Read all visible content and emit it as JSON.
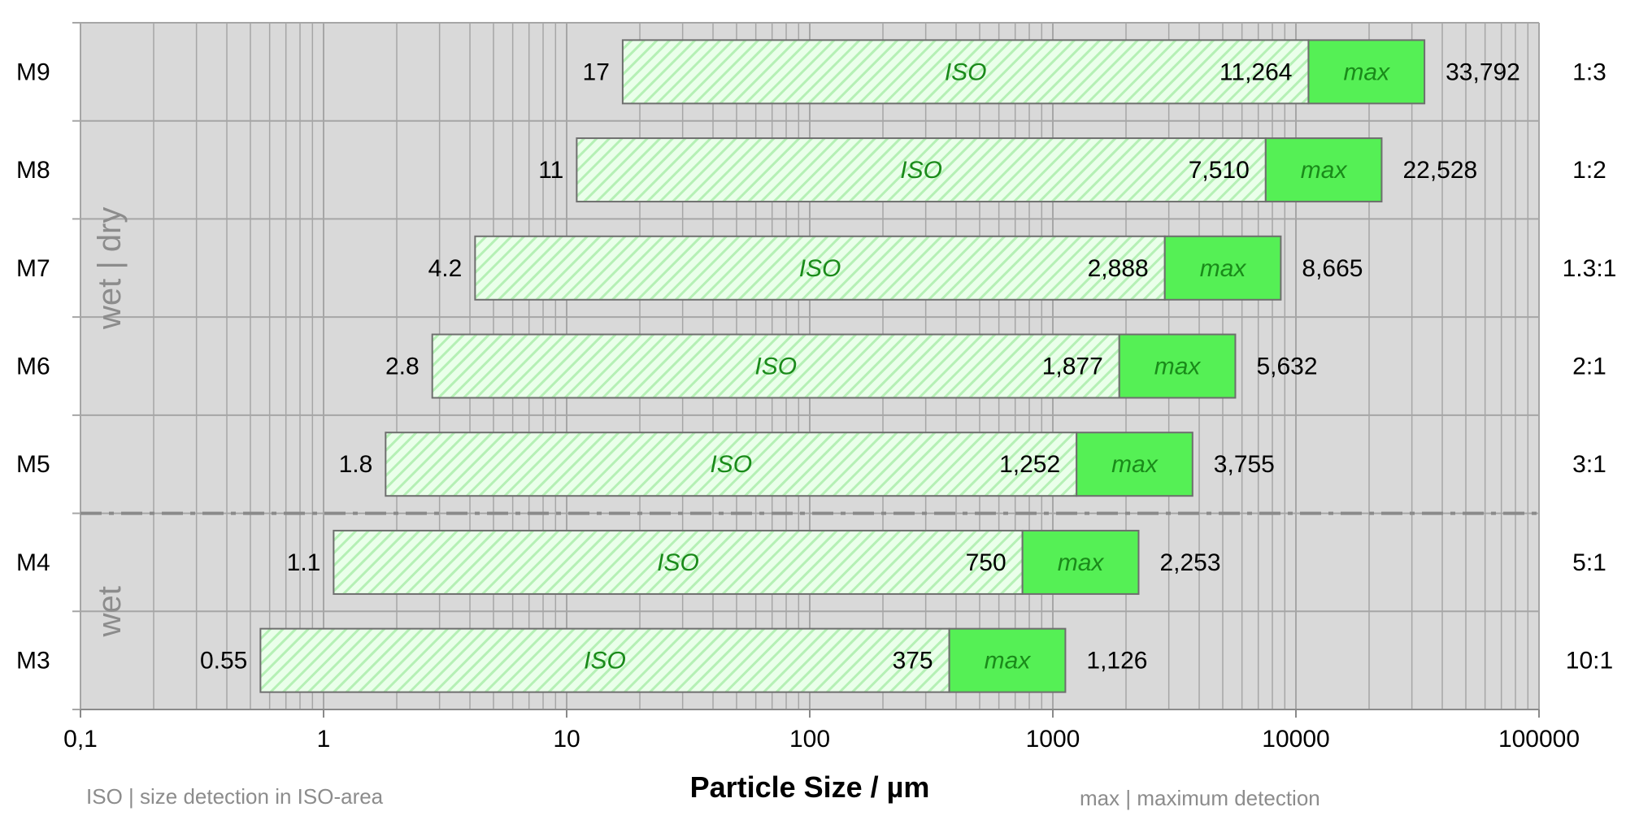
{
  "chart_data": {
    "type": "bar",
    "subtype": "floating-range-log",
    "xlabel": "Particle Size / µm",
    "xscale": "log",
    "xlim": [
      0.1,
      100000
    ],
    "xticks": [
      {
        "value": 0.1,
        "label": "0,1"
      },
      {
        "value": 1,
        "label": "1"
      },
      {
        "value": 10,
        "label": "10"
      },
      {
        "value": 100,
        "label": "100"
      },
      {
        "value": 1000,
        "label": "1000"
      },
      {
        "value": 10000,
        "label": "10000"
      },
      {
        "value": 100000,
        "label": "100000"
      }
    ],
    "grid": true,
    "segment_labels": {
      "iso": "ISO",
      "max": "max"
    },
    "rows": [
      {
        "name": "M9",
        "iso_min": 17,
        "iso_max": 11264,
        "max": 33792,
        "iso_min_label": "17",
        "iso_max_label": "11,264",
        "max_label": "33,792",
        "ratio": "1:3"
      },
      {
        "name": "M8",
        "iso_min": 11,
        "iso_max": 7510,
        "max": 22528,
        "iso_min_label": "11",
        "iso_max_label": "7,510",
        "max_label": "22,528",
        "ratio": "1:2"
      },
      {
        "name": "M7",
        "iso_min": 4.2,
        "iso_max": 2888,
        "max": 8665,
        "iso_min_label": "4.2",
        "iso_max_label": "2,888",
        "max_label": "8,665",
        "ratio": "1.3:1"
      },
      {
        "name": "M6",
        "iso_min": 2.8,
        "iso_max": 1877,
        "max": 5632,
        "iso_min_label": "2.8",
        "iso_max_label": "1,877",
        "max_label": "5,632",
        "ratio": "2:1"
      },
      {
        "name": "M5",
        "iso_min": 1.8,
        "iso_max": 1252,
        "max": 3755,
        "iso_min_label": "1.8",
        "iso_max_label": "1,252",
        "max_label": "3,755",
        "ratio": "3:1"
      },
      {
        "name": "M4",
        "iso_min": 1.1,
        "iso_max": 750,
        "max": 2253,
        "iso_min_label": "1.1",
        "iso_max_label": "750",
        "max_label": "2,253",
        "ratio": "5:1"
      },
      {
        "name": "M3",
        "iso_min": 0.55,
        "iso_max": 375,
        "max": 1126,
        "iso_min_label": "0.55",
        "iso_max_label": "375",
        "max_label": "1,126",
        "ratio": "10:1"
      }
    ],
    "groups": [
      {
        "label": "wet | dry",
        "rows": [
          "M9",
          "M8",
          "M7",
          "M6",
          "M5"
        ]
      },
      {
        "label": "wet",
        "rows": [
          "M4",
          "M3"
        ]
      }
    ],
    "legend_notes": {
      "iso": "ISO | size detection in ISO-area",
      "max": "max | maximum detection"
    },
    "colors": {
      "plot_background": "#d9d9d9",
      "iso_fill": "#eaffea",
      "iso_hatch": "#b5f0b5",
      "max_fill": "#55f055",
      "segment_text": "#1a8a1a",
      "bar_border": "#6e6e6e",
      "grid": "#a6a6a6",
      "group_label": "#8c8c8c"
    }
  }
}
